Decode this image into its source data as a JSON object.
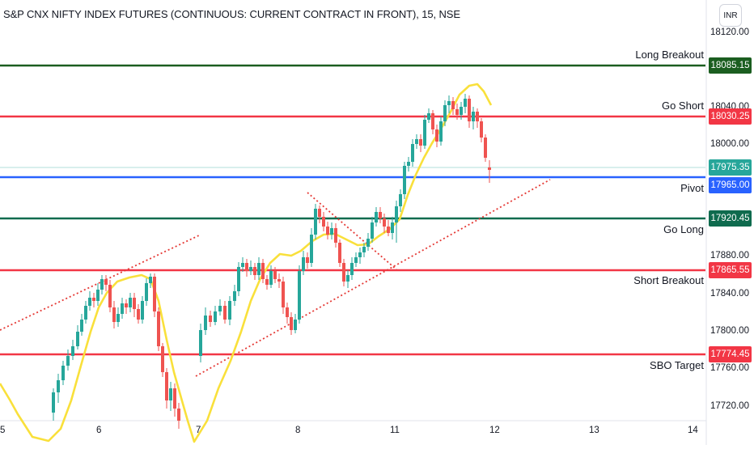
{
  "header": {
    "title": "S&P CNX NIFTY INDEX FUTURES (CONTINUOUS: CURRENT CONTRACT IN FRONT), 15, NSE",
    "currency": "INR"
  },
  "colors": {
    "green": "#26a69a",
    "red": "#ef5350",
    "ma": "#f9e03b",
    "level_red": "#f23645",
    "level_green": "#1b5e20",
    "level_teal": "#0f6b4e",
    "pivot_blue": "#2962ff"
  },
  "price_axis": {
    "ticks": [
      "18120.00",
      "18040.00",
      "18000.00",
      "17880.00",
      "17840.00",
      "17800.00",
      "17760.00",
      "17720.00"
    ]
  },
  "time_axis": {
    "ticks": [
      "5",
      "6",
      "7",
      "8",
      "11",
      "12",
      "13",
      "14"
    ]
  },
  "levels": [
    {
      "label": "Long Breakout",
      "price": "18085.15",
      "color": "#1b5e20"
    },
    {
      "label": "Go Short",
      "price": "18030.25",
      "color": "#f23645"
    },
    {
      "label": "Pivot",
      "price": "17965.00",
      "color": "#2962ff"
    },
    {
      "label": "Go Long",
      "price": "17920.45",
      "color": "#0f6b4e"
    },
    {
      "label": "Short Breakout",
      "price": "17865.55",
      "color": "#f23645"
    },
    {
      "label": "SBO Target",
      "price": "17774.45",
      "color": "#f23645"
    }
  ],
  "last_price": {
    "value": "17975.35",
    "color": "#26a69a"
  }
}
